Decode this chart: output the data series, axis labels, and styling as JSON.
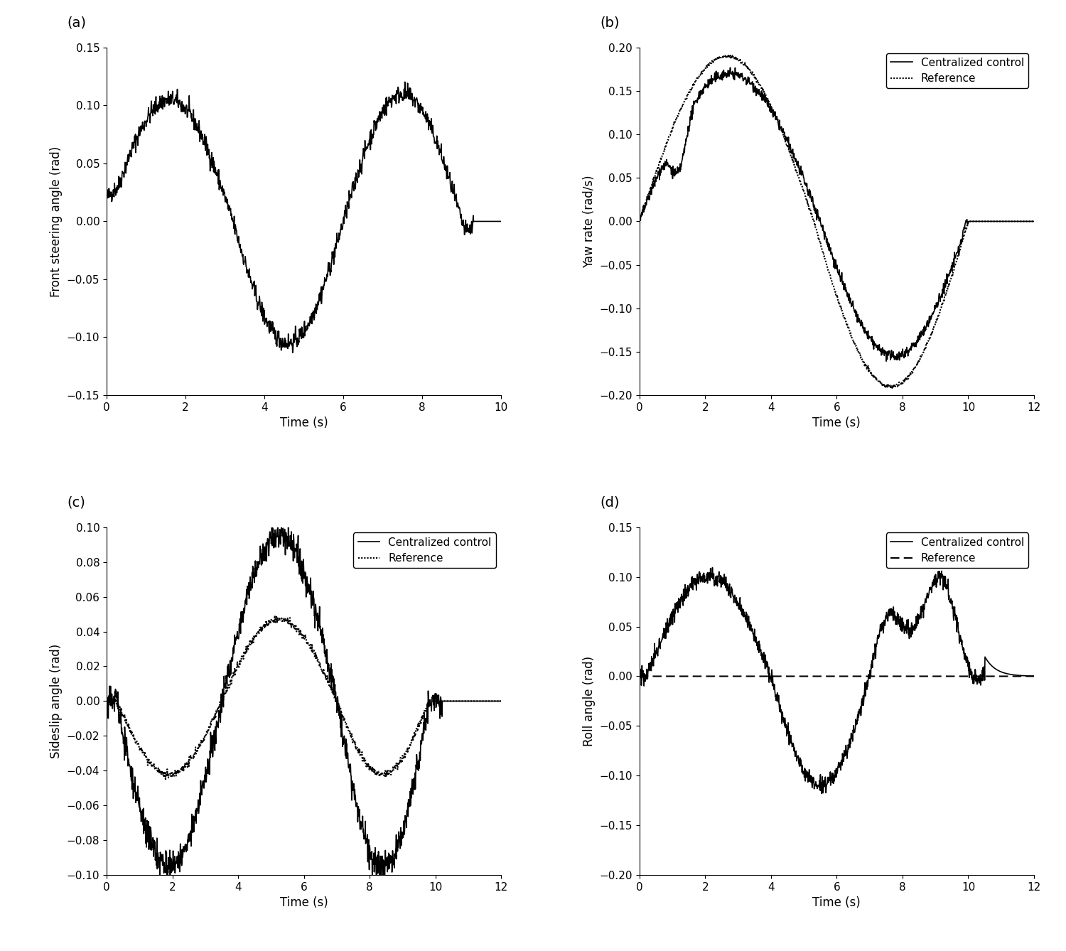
{
  "fig_width": 15.0,
  "fig_height": 13.38,
  "background_color": "#ffffff",
  "panel_labels": [
    "(a)",
    "(b)",
    "(c)",
    "(d)"
  ],
  "subplots": {
    "a": {
      "xlabel": "Time (s)",
      "ylabel": "Front steering angle (rad)",
      "xlim": [
        0,
        10
      ],
      "ylim": [
        -0.15,
        0.15
      ],
      "xticks": [
        0,
        2,
        4,
        6,
        8,
        10
      ],
      "yticks": [
        -0.15,
        -0.1,
        -0.05,
        0,
        0.05,
        0.1,
        0.15
      ],
      "has_legend": false
    },
    "b": {
      "xlabel": "Time (s)",
      "ylabel": "Yaw rate (rad/s)",
      "xlim": [
        0,
        12
      ],
      "ylim": [
        -0.2,
        0.2
      ],
      "xticks": [
        0,
        2,
        4,
        6,
        8,
        10,
        12
      ],
      "yticks": [
        -0.2,
        -0.15,
        -0.1,
        -0.05,
        0,
        0.05,
        0.1,
        0.15,
        0.2
      ],
      "has_legend": true,
      "legend_loc": "upper right"
    },
    "c": {
      "xlabel": "Time (s)",
      "ylabel": "Sideslip angle (rad)",
      "xlim": [
        0,
        12
      ],
      "ylim": [
        -0.1,
        0.1
      ],
      "xticks": [
        0,
        2,
        4,
        6,
        8,
        10,
        12
      ],
      "yticks": [
        -0.1,
        -0.08,
        -0.06,
        -0.04,
        -0.02,
        0,
        0.02,
        0.04,
        0.06,
        0.08,
        0.1
      ],
      "has_legend": true,
      "legend_loc": "upper right"
    },
    "d": {
      "xlabel": "Time (s)",
      "ylabel": "Roll angle (rad)",
      "xlim": [
        0,
        12
      ],
      "ylim": [
        -0.2,
        0.15
      ],
      "xticks": [
        0,
        2,
        4,
        6,
        8,
        10,
        12
      ],
      "yticks": [
        -0.2,
        -0.15,
        -0.1,
        -0.05,
        0,
        0.05,
        0.1,
        0.15
      ],
      "has_legend": true,
      "legend_loc": "upper right"
    }
  },
  "line_solid_color": "#000000",
  "line_dotted_color": "#000000",
  "legend_labels": [
    "Centralized control",
    "Reference"
  ]
}
